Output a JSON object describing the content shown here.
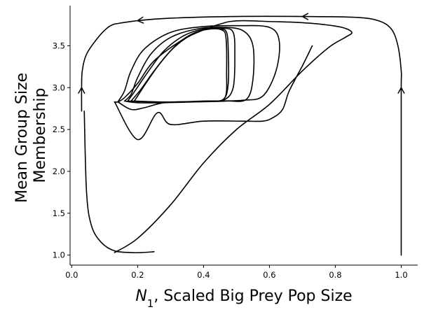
{
  "chart_data": {
    "type": "line",
    "title": "",
    "xlabel_symbol": "N",
    "xlabel_sub": "1",
    "xlabel_rest": ", Scaled Big Prey Pop Size",
    "ylabel_lines": [
      "Mean Group Size",
      "Membership"
    ],
    "xlim": [
      -0.005,
      1.05
    ],
    "ylim": [
      0.88,
      3.98
    ],
    "xticks": [
      0.0,
      0.2,
      0.4,
      0.6,
      0.8,
      1.0
    ],
    "xtick_labels": [
      "0.0",
      "0.2",
      "0.4",
      "0.6",
      "0.8",
      "1.0"
    ],
    "yticks": [
      1.0,
      1.5,
      2.0,
      2.5,
      3.0,
      3.5
    ],
    "ytick_labels": [
      "1.0",
      "1.5",
      "2.0",
      "2.5",
      "3.0",
      "3.5"
    ],
    "grid": false,
    "legend": "none",
    "line_color": "#000000",
    "series": [
      {
        "x": [
          0.03,
          0.03,
          0.032,
          0.045,
          0.08,
          0.11,
          0.13
        ],
        "y": [
          2.72,
          3.0,
          3.2,
          3.4,
          3.6,
          3.72,
          3.76
        ],
        "arrows_at": [
          1
        ]
      },
      {
        "x": [
          0.25,
          0.21,
          0.18,
          0.13,
          0.09,
          0.06,
          0.045,
          0.038
        ],
        "y": [
          1.04,
          1.03,
          1.03,
          1.05,
          1.15,
          1.35,
          1.75,
          2.72
        ],
        "arrows_at": []
      },
      {
        "x": [
          0.13,
          0.2,
          0.3,
          0.4,
          0.5,
          0.6,
          0.7,
          0.78,
          0.83,
          0.85,
          0.82,
          0.75,
          0.68,
          0.6,
          0.52,
          0.48,
          0.46,
          0.42,
          0.34,
          0.25,
          0.2,
          0.16,
          0.14,
          0.13
        ],
        "y": [
          1.03,
          1.2,
          1.6,
          2.1,
          2.5,
          2.8,
          3.2,
          3.48,
          3.6,
          3.66,
          3.72,
          3.76,
          3.78,
          3.79,
          3.8,
          3.79,
          3.77,
          3.72,
          3.58,
          3.32,
          3.05,
          2.88,
          2.83,
          2.83
        ],
        "arrows_at": []
      },
      {
        "x": [
          0.13,
          0.2,
          0.26,
          0.3,
          0.4,
          0.52,
          0.58,
          0.61,
          0.64,
          0.66,
          0.7,
          0.73
        ],
        "y": [
          2.83,
          2.38,
          2.7,
          2.56,
          2.6,
          2.6,
          2.6,
          2.64,
          2.74,
          2.96,
          3.26,
          3.5
        ],
        "arrows_at": []
      },
      {
        "x": [
          0.14,
          0.18,
          0.22,
          0.28,
          0.36,
          0.44,
          0.52,
          0.58,
          0.62,
          0.63,
          0.6,
          0.5,
          0.4,
          0.3,
          0.22,
          0.18,
          0.16,
          0.14
        ],
        "y": [
          2.83,
          2.74,
          2.76,
          2.82,
          2.83,
          2.84,
          2.85,
          2.9,
          3.2,
          3.55,
          3.72,
          3.74,
          3.73,
          3.66,
          3.46,
          3.2,
          2.96,
          2.83
        ],
        "arrows_at": []
      },
      {
        "x": [
          0.16,
          0.2,
          0.28,
          0.38,
          0.47,
          0.53,
          0.55,
          0.55,
          0.52,
          0.46,
          0.38,
          0.3,
          0.24,
          0.2,
          0.18,
          0.16
        ],
        "y": [
          2.84,
          2.82,
          2.82,
          2.83,
          2.84,
          2.86,
          3.1,
          3.5,
          3.68,
          3.72,
          3.7,
          3.6,
          3.4,
          3.12,
          2.92,
          2.84
        ],
        "arrows_at": []
      },
      {
        "x": [
          0.17,
          0.24,
          0.32,
          0.4,
          0.46,
          0.49,
          0.495,
          0.49,
          0.46,
          0.4,
          0.34,
          0.28,
          0.23,
          0.19,
          0.17
        ],
        "y": [
          2.84,
          2.83,
          2.83,
          2.84,
          2.85,
          3.0,
          3.4,
          3.66,
          3.71,
          3.7,
          3.62,
          3.44,
          3.18,
          2.95,
          2.84
        ],
        "arrows_at": []
      },
      {
        "x": [
          0.18,
          0.25,
          0.33,
          0.41,
          0.46,
          0.475,
          0.475,
          0.47,
          0.45,
          0.4,
          0.35,
          0.3,
          0.25,
          0.21,
          0.18
        ],
        "y": [
          2.84,
          2.83,
          2.83,
          2.84,
          2.86,
          3.05,
          3.45,
          3.66,
          3.7,
          3.69,
          3.6,
          3.44,
          3.2,
          2.98,
          2.84
        ],
        "arrows_at": []
      },
      {
        "x": [
          0.19,
          0.26,
          0.34,
          0.42,
          0.465,
          0.47,
          0.468,
          0.455,
          0.42,
          0.37,
          0.32,
          0.27,
          0.23,
          0.2,
          0.19
        ],
        "y": [
          2.84,
          2.83,
          2.83,
          2.84,
          2.88,
          3.2,
          3.6,
          3.69,
          3.7,
          3.65,
          3.52,
          3.3,
          3.08,
          2.9,
          2.84
        ],
        "arrows_at": []
      },
      {
        "x": [
          1.0,
          1.0,
          1.0,
          1.0,
          0.99,
          0.97,
          0.93,
          0.86,
          0.7,
          0.5,
          0.3,
          0.2,
          0.13
        ],
        "y": [
          1.0,
          2.0,
          3.0,
          3.2,
          3.5,
          3.7,
          3.8,
          3.84,
          3.85,
          3.85,
          3.83,
          3.8,
          3.76
        ],
        "arrows_at": [
          2,
          8,
          11
        ]
      }
    ]
  }
}
